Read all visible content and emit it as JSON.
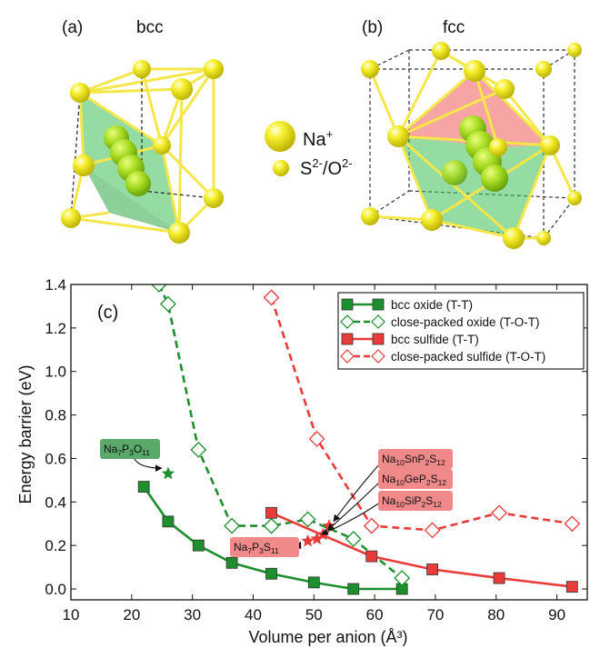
{
  "panels": {
    "a": {
      "tag": "(a)",
      "name": "bcc"
    },
    "b": {
      "tag": "(b)",
      "name": "fcc"
    },
    "c": {
      "tag": "(c)"
    }
  },
  "species_legend": {
    "large": {
      "base": "Na",
      "sup": "+"
    },
    "small": {
      "base": "S",
      "sup1": "2-",
      "mid": "/O",
      "sup2": "2-"
    }
  },
  "colors": {
    "atom": "#f3ee2a",
    "atom_dark": "#b9b000",
    "bond": "#f5e64a",
    "green_poly": "#3cbf55",
    "red_poly": "#ef5a5a",
    "mobile": "#9ad21e",
    "oxide": "#1d8f2c",
    "sulfide": "#ea3b3b",
    "label_green": "#5aa86a",
    "label_red": "#f08a8a"
  },
  "chart_data": {
    "type": "line",
    "xlabel": "Volume per anion (Å³)",
    "ylabel": "Energy barrier (eV)",
    "xlim": [
      10,
      95
    ],
    "ylim": [
      -0.05,
      1.4
    ],
    "xticks": [
      "10",
      "20",
      "30",
      "40",
      "50",
      "60",
      "70",
      "80",
      "90"
    ],
    "yticks": [
      "0.0",
      "0.2",
      "0.4",
      "0.6",
      "0.8",
      "1.0",
      "1.2",
      "1.4"
    ],
    "legend_position": "top-right",
    "series": [
      {
        "name": "bcc oxide (T-T)",
        "style": "solid",
        "marker": "square-filled",
        "color": "#1d8f2c",
        "x": [
          22.0,
          26.0,
          31.0,
          36.5,
          43.0,
          50.0,
          56.5,
          64.5
        ],
        "y": [
          0.47,
          0.31,
          0.2,
          0.12,
          0.07,
          0.03,
          0.0,
          0.0
        ]
      },
      {
        "name": "close-packed oxide (T-O-T)",
        "style": "dashed",
        "marker": "diamond-open",
        "color": "#1d8f2c",
        "x": [
          24.5,
          26.0,
          31.0,
          36.5,
          43.0,
          49.0,
          56.5,
          64.5
        ],
        "y": [
          1.4,
          1.31,
          0.64,
          0.29,
          0.29,
          0.32,
          0.23,
          0.05
        ]
      },
      {
        "name": "bcc sulfide (T-T)",
        "style": "solid",
        "marker": "square-filled",
        "color": "#ea3b3b",
        "x": [
          43.0,
          59.5,
          69.5,
          80.5,
          92.5
        ],
        "y": [
          0.35,
          0.15,
          0.09,
          0.05,
          0.01
        ]
      },
      {
        "name": "close-packed sulfide (T-O-T)",
        "style": "dashed",
        "marker": "diamond-open",
        "color": "#ea3b3b",
        "x": [
          43.0,
          50.5,
          59.5,
          69.5,
          80.5,
          92.5
        ],
        "y": [
          1.34,
          0.69,
          0.29,
          0.27,
          0.35,
          0.3
        ]
      }
    ],
    "annotations": [
      {
        "id": "na7p3o11",
        "base": "Na",
        "parts": [
          [
            "Na",
            ""
          ],
          [
            "7",
            "sub"
          ],
          [
            "P",
            ""
          ],
          [
            "3",
            "sub"
          ],
          [
            "O",
            ""
          ],
          [
            "11",
            "sub"
          ]
        ],
        "x": 26.0,
        "y": 0.53,
        "color": "#1d8f2c"
      },
      {
        "id": "na10snp2s12",
        "parts": [
          [
            "Na",
            ""
          ],
          [
            "10",
            "sub"
          ],
          [
            "SnP",
            ""
          ],
          [
            "2",
            "sub"
          ],
          [
            "S",
            ""
          ],
          [
            "12",
            "sub"
          ]
        ],
        "x": 52.5,
        "y": 0.29,
        "color": "#ea3b3b"
      },
      {
        "id": "na10gep2s12",
        "parts": [
          [
            "Na",
            ""
          ],
          [
            "10",
            "sub"
          ],
          [
            "GeP",
            ""
          ],
          [
            "2",
            "sub"
          ],
          [
            "S",
            ""
          ],
          [
            "12",
            "sub"
          ]
        ],
        "x": 51.5,
        "y": 0.25,
        "color": "#ea3b3b"
      },
      {
        "id": "na10sip2s12",
        "parts": [
          [
            "Na",
            ""
          ],
          [
            "10",
            "sub"
          ],
          [
            "SiP",
            ""
          ],
          [
            "2",
            "sub"
          ],
          [
            "S",
            ""
          ],
          [
            "12",
            "sub"
          ]
        ],
        "x": 50.5,
        "y": 0.23,
        "color": "#ea3b3b"
      },
      {
        "id": "na7p3s11",
        "parts": [
          [
            "Na",
            ""
          ],
          [
            "7",
            "sub"
          ],
          [
            "P",
            ""
          ],
          [
            "3",
            "sub"
          ],
          [
            "S",
            ""
          ],
          [
            "11",
            "sub"
          ]
        ],
        "x": 49.0,
        "y": 0.22,
        "color": "#ea3b3b"
      }
    ]
  }
}
